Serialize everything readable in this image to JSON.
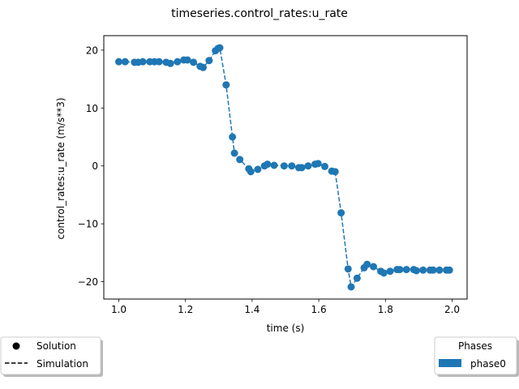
{
  "chart_data": {
    "type": "line",
    "title": "timeseries.control_rates:u_rate",
    "xlabel": "time (s)",
    "ylabel": "control_rates:u_rate (m/s**3)",
    "xlim": [
      0.955,
      2.045
    ],
    "ylim": [
      -23,
      22.5
    ],
    "xticks": [
      1.0,
      1.2,
      1.4,
      1.6,
      1.8,
      2.0
    ],
    "xtick_labels": [
      "1.0",
      "1.2",
      "1.4",
      "1.6",
      "1.8",
      "2.0"
    ],
    "yticks": [
      20,
      10,
      0,
      -10,
      -20
    ],
    "ytick_labels": [
      "20",
      "10",
      "0",
      "−10",
      "−20"
    ],
    "grid": false,
    "color": "#1f77b4",
    "series": [
      {
        "name": "Solution",
        "style": "markers",
        "x": [
          1.0,
          1.019,
          1.047,
          1.058,
          1.072,
          1.093,
          1.107,
          1.121,
          1.142,
          1.155,
          1.176,
          1.195,
          1.206,
          1.224,
          1.244,
          1.253,
          1.271,
          1.29,
          1.298,
          1.303,
          1.322,
          1.341,
          1.347,
          1.363,
          1.39,
          1.396,
          1.417,
          1.437,
          1.446,
          1.466,
          1.496,
          1.519,
          1.54,
          1.549,
          1.568,
          1.589,
          1.598,
          1.618,
          1.639,
          1.649,
          1.667,
          1.688,
          1.697,
          1.715,
          1.736,
          1.745,
          1.764,
          1.786,
          1.795,
          1.814,
          1.835,
          1.843,
          1.863,
          1.885,
          1.893,
          1.913,
          1.934,
          1.943,
          1.962,
          1.983,
          1.992
        ],
        "y": [
          18.0,
          18.0,
          17.9,
          17.9,
          18.0,
          18.0,
          18.0,
          18.0,
          17.9,
          17.7,
          18.0,
          18.3,
          18.3,
          17.9,
          17.2,
          17.0,
          18.2,
          19.9,
          20.3,
          20.4,
          14.0,
          5.0,
          2.2,
          1.1,
          -0.5,
          -1.0,
          -0.6,
          0.0,
          0.3,
          0.1,
          0.0,
          0.0,
          -0.3,
          -0.3,
          0.0,
          0.3,
          0.4,
          -0.1,
          -0.9,
          -1.0,
          -8.1,
          -17.8,
          -20.9,
          -19.4,
          -17.6,
          -17.0,
          -17.4,
          -18.2,
          -18.5,
          -18.2,
          -17.9,
          -17.9,
          -17.9,
          -17.9,
          -18.1,
          -18.0,
          -18.0,
          -18.0,
          -18.0,
          -18.0,
          -18.0
        ]
      },
      {
        "name": "Simulation",
        "style": "dashed",
        "x": [
          1.0,
          1.019,
          1.047,
          1.058,
          1.072,
          1.093,
          1.107,
          1.121,
          1.142,
          1.155,
          1.176,
          1.195,
          1.206,
          1.224,
          1.244,
          1.253,
          1.271,
          1.29,
          1.298,
          1.303,
          1.322,
          1.341,
          1.347,
          1.363,
          1.39,
          1.396,
          1.417,
          1.437,
          1.446,
          1.466,
          1.496,
          1.519,
          1.54,
          1.549,
          1.568,
          1.589,
          1.598,
          1.618,
          1.639,
          1.649,
          1.667,
          1.688,
          1.697,
          1.715,
          1.736,
          1.745,
          1.764,
          1.786,
          1.795,
          1.814,
          1.835,
          1.843,
          1.863,
          1.885,
          1.893,
          1.913,
          1.934,
          1.943,
          1.962,
          1.983,
          1.992
        ],
        "y": [
          18.0,
          18.0,
          17.9,
          17.9,
          18.0,
          18.0,
          18.0,
          18.0,
          17.9,
          17.7,
          18.0,
          18.3,
          18.3,
          17.9,
          17.2,
          17.0,
          18.2,
          19.9,
          20.3,
          20.4,
          14.0,
          5.0,
          2.2,
          1.1,
          -0.5,
          -1.0,
          -0.6,
          0.0,
          0.3,
          0.1,
          0.0,
          0.0,
          -0.3,
          -0.3,
          0.0,
          0.3,
          0.4,
          -0.1,
          -0.9,
          -1.0,
          -8.1,
          -17.8,
          -20.9,
          -19.4,
          -17.6,
          -17.0,
          -17.4,
          -18.2,
          -18.5,
          -18.2,
          -17.9,
          -17.9,
          -17.9,
          -17.9,
          -18.1,
          -18.0,
          -18.0,
          -18.0,
          -18.0,
          -18.0,
          -18.0
        ]
      }
    ],
    "legends": [
      {
        "placement": "bottom-left",
        "entries": [
          {
            "label": "Solution",
            "marker": "circle",
            "color": "#000000"
          },
          {
            "label": "Simulation",
            "marker": "dashed-line",
            "color": "#000000"
          }
        ]
      },
      {
        "placement": "bottom-right",
        "title": "Phases",
        "entries": [
          {
            "label": "phase0",
            "marker": "patch",
            "color": "#1f77b4"
          }
        ]
      }
    ]
  }
}
